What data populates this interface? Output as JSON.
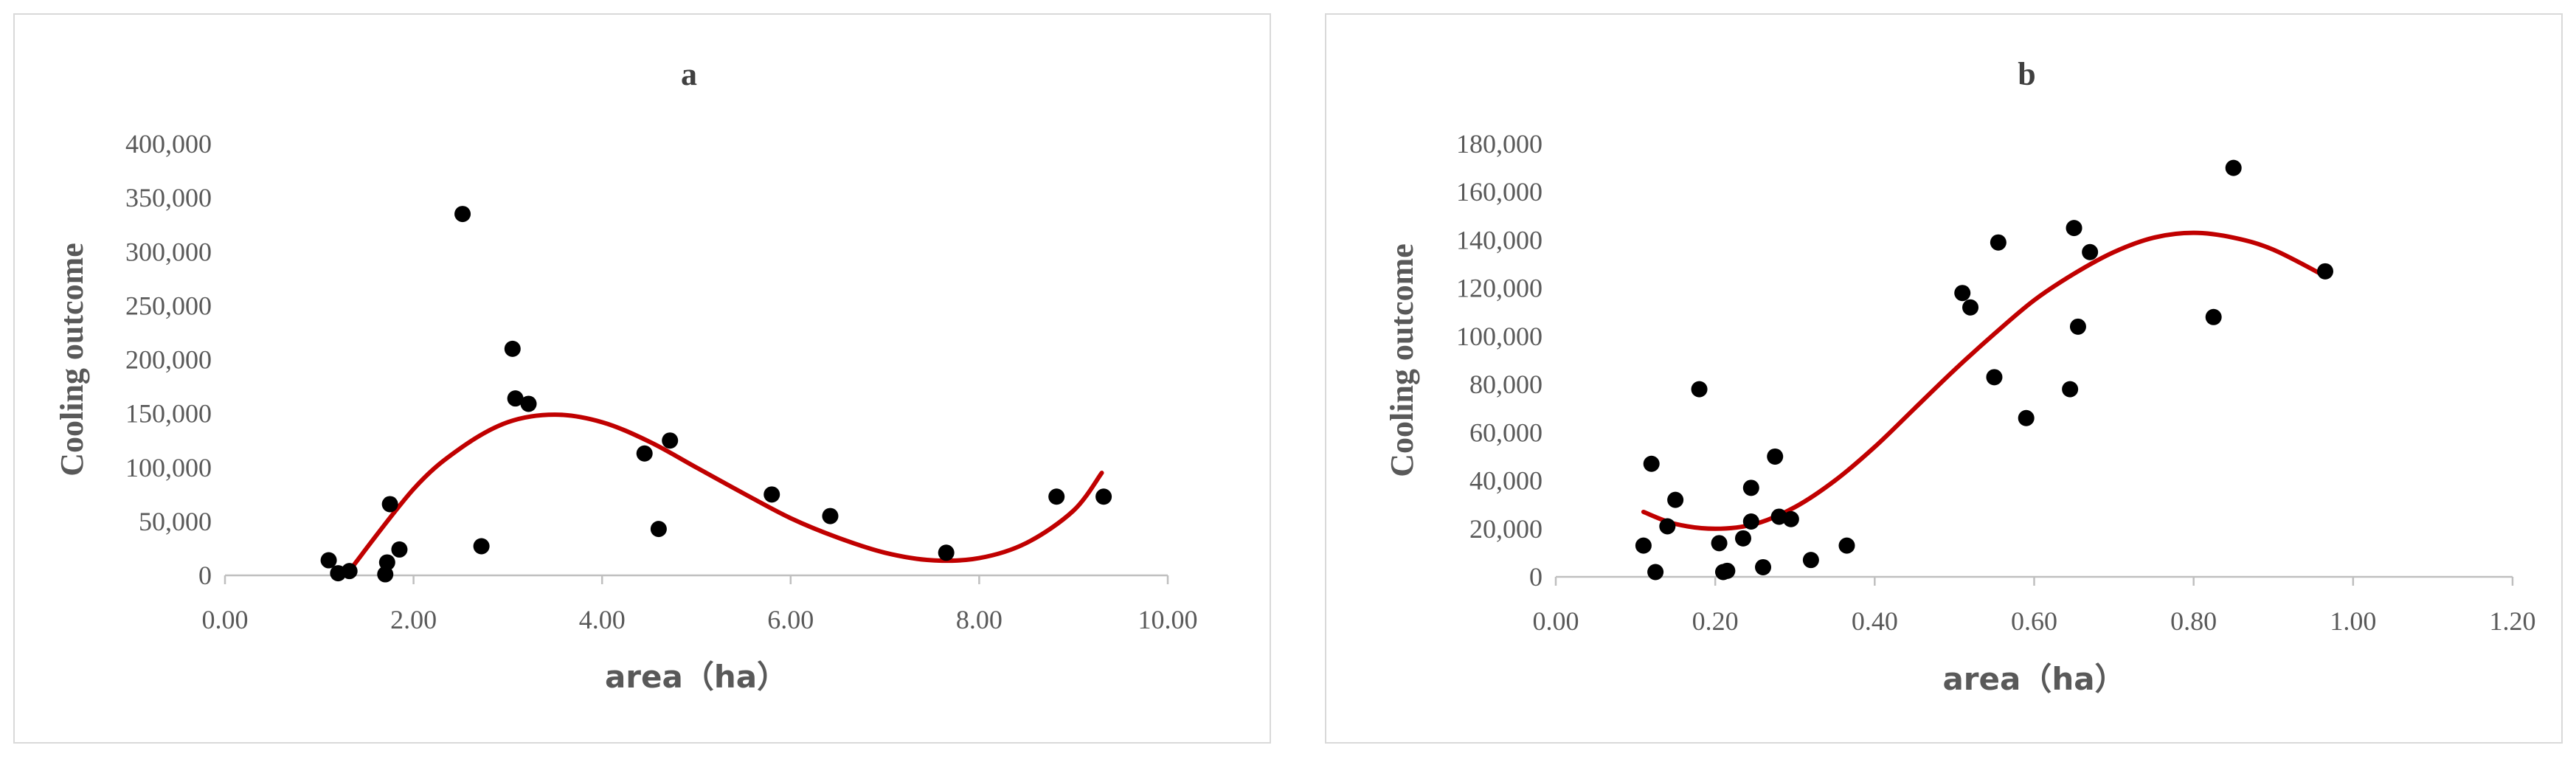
{
  "colors": {
    "points": "#000000",
    "fit_line": "#c00000",
    "axis": "#bfbfbf",
    "text": "#595959"
  },
  "chart_data": [
    {
      "type": "scatter",
      "title": "a",
      "xlabel": "area（ha）",
      "ylabel": "Cooling outcome",
      "xlim": [
        0,
        10
      ],
      "ylim": [
        0,
        400000
      ],
      "x_ticks": [
        "0.00",
        "2.00",
        "4.00",
        "6.00",
        "8.00",
        "10.00"
      ],
      "x_tick_values": [
        0,
        2,
        4,
        6,
        8,
        10
      ],
      "y_ticks": [
        "0",
        "50,000",
        "100,000",
        "150,000",
        "200,000",
        "250,000",
        "300,000",
        "350,000",
        "400,000"
      ],
      "y_tick_values": [
        0,
        50000,
        100000,
        150000,
        200000,
        250000,
        300000,
        350000,
        400000
      ],
      "grid": false,
      "points": [
        [
          1.1,
          14000
        ],
        [
          1.2,
          2000
        ],
        [
          1.32,
          4000
        ],
        [
          1.7,
          1000
        ],
        [
          1.72,
          12000
        ],
        [
          1.75,
          66000
        ],
        [
          1.85,
          24000
        ],
        [
          2.52,
          335000
        ],
        [
          2.72,
          27000
        ],
        [
          3.05,
          210000
        ],
        [
          3.08,
          164000
        ],
        [
          3.22,
          159000
        ],
        [
          4.45,
          113000
        ],
        [
          4.6,
          43000
        ],
        [
          4.72,
          125000
        ],
        [
          5.8,
          75000
        ],
        [
          6.42,
          55000
        ],
        [
          7.65,
          21000
        ],
        [
          8.82,
          73000
        ],
        [
          9.32,
          73000
        ]
      ],
      "trendline": {
        "type": "polynomial (order 3)",
        "x_range": [
          1.3,
          9.3
        ],
        "points": [
          [
            1.3,
            2000
          ],
          [
            2.0,
            80000
          ],
          [
            2.5,
            118000
          ],
          [
            3.0,
            142000
          ],
          [
            3.5,
            149000
          ],
          [
            4.0,
            142000
          ],
          [
            4.5,
            124000
          ],
          [
            5.0,
            100000
          ],
          [
            5.5,
            76000
          ],
          [
            6.0,
            53000
          ],
          [
            6.5,
            35000
          ],
          [
            7.0,
            21000
          ],
          [
            7.5,
            14000
          ],
          [
            8.0,
            16000
          ],
          [
            8.5,
            30000
          ],
          [
            9.0,
            60000
          ],
          [
            9.3,
            95000
          ]
        ]
      }
    },
    {
      "type": "scatter",
      "title": "b",
      "xlabel": "area（ha）",
      "ylabel": "Cooling outcome",
      "xlim": [
        0,
        1.2
      ],
      "ylim": [
        0,
        180000
      ],
      "x_ticks": [
        "0.00",
        "0.20",
        "0.40",
        "0.60",
        "0.80",
        "1.00",
        "1.20"
      ],
      "x_tick_values": [
        0,
        0.2,
        0.4,
        0.6,
        0.8,
        1.0,
        1.2
      ],
      "y_ticks": [
        "0",
        "20,000",
        "40,000",
        "60,000",
        "80,000",
        "100,000",
        "120,000",
        "140,000",
        "160,000",
        "180,000"
      ],
      "y_tick_values": [
        0,
        20000,
        40000,
        60000,
        80000,
        100000,
        120000,
        140000,
        160000,
        180000
      ],
      "grid": false,
      "points": [
        [
          0.11,
          13000
        ],
        [
          0.12,
          47000
        ],
        [
          0.125,
          2000
        ],
        [
          0.14,
          21000
        ],
        [
          0.15,
          32000
        ],
        [
          0.18,
          78000
        ],
        [
          0.205,
          14000
        ],
        [
          0.21,
          2000
        ],
        [
          0.215,
          2500
        ],
        [
          0.235,
          16000
        ],
        [
          0.245,
          23000
        ],
        [
          0.245,
          37000
        ],
        [
          0.26,
          4000
        ],
        [
          0.275,
          50000
        ],
        [
          0.28,
          25000
        ],
        [
          0.295,
          24000
        ],
        [
          0.32,
          7000
        ],
        [
          0.365,
          13000
        ],
        [
          0.51,
          118000
        ],
        [
          0.52,
          112000
        ],
        [
          0.55,
          83000
        ],
        [
          0.555,
          139000
        ],
        [
          0.59,
          66000
        ],
        [
          0.645,
          78000
        ],
        [
          0.65,
          145000
        ],
        [
          0.655,
          104000
        ],
        [
          0.67,
          135000
        ],
        [
          0.825,
          108000
        ],
        [
          0.85,
          170000
        ],
        [
          0.965,
          127000
        ]
      ],
      "trendline": {
        "type": "polynomial (order 3)",
        "x_range": [
          0.11,
          0.965
        ],
        "points": [
          [
            0.11,
            27000
          ],
          [
            0.15,
            22000
          ],
          [
            0.2,
            20000
          ],
          [
            0.25,
            22000
          ],
          [
            0.3,
            29000
          ],
          [
            0.35,
            40000
          ],
          [
            0.4,
            54000
          ],
          [
            0.45,
            70000
          ],
          [
            0.5,
            86000
          ],
          [
            0.55,
            101000
          ],
          [
            0.6,
            115000
          ],
          [
            0.65,
            126000
          ],
          [
            0.7,
            135000
          ],
          [
            0.75,
            141000
          ],
          [
            0.8,
            143000
          ],
          [
            0.85,
            141000
          ],
          [
            0.9,
            136000
          ],
          [
            0.965,
            125000
          ]
        ]
      }
    }
  ]
}
